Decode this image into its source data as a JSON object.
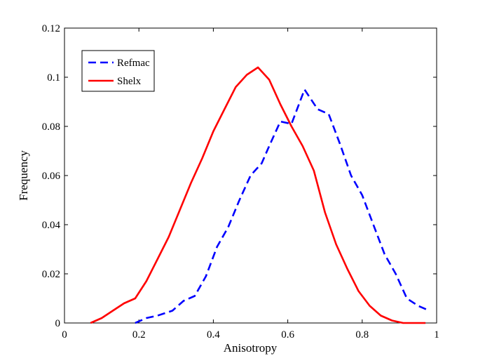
{
  "chart_data": {
    "type": "line",
    "xlabel": "Anisotropy",
    "ylabel": "Frequency",
    "xlim": [
      0,
      1
    ],
    "ylim": [
      0,
      0.12
    ],
    "x_ticks": [
      "0",
      "0.2",
      "0.4",
      "0.6",
      "0.8",
      "1"
    ],
    "y_ticks": [
      "0",
      "0.02",
      "0.04",
      "0.06",
      "0.08",
      "0.1",
      "0.12"
    ],
    "grid": false,
    "legend_position": "top-left",
    "series": [
      {
        "name": "Refmac",
        "color": "#0000ff",
        "style": "dashed",
        "x": [
          0.19,
          0.22,
          0.25,
          0.27,
          0.29,
          0.32,
          0.35,
          0.38,
          0.41,
          0.44,
          0.47,
          0.5,
          0.53,
          0.55,
          0.58,
          0.61,
          0.645,
          0.68,
          0.71,
          0.74,
          0.77,
          0.8,
          0.83,
          0.86,
          0.89,
          0.92,
          0.95,
          0.98
        ],
        "y": [
          0.0,
          0.002,
          0.003,
          0.004,
          0.005,
          0.009,
          0.011,
          0.019,
          0.031,
          0.039,
          0.05,
          0.06,
          0.065,
          0.072,
          0.082,
          0.081,
          0.095,
          0.087,
          0.085,
          0.073,
          0.06,
          0.052,
          0.04,
          0.028,
          0.02,
          0.01,
          0.007,
          0.005
        ]
      },
      {
        "name": "Shelx",
        "color": "#ff0000",
        "style": "solid",
        "x": [
          0.07,
          0.1,
          0.13,
          0.16,
          0.19,
          0.22,
          0.25,
          0.28,
          0.31,
          0.34,
          0.37,
          0.4,
          0.43,
          0.46,
          0.49,
          0.52,
          0.55,
          0.58,
          0.61,
          0.64,
          0.67,
          0.7,
          0.73,
          0.76,
          0.79,
          0.82,
          0.85,
          0.88,
          0.91,
          0.94,
          0.97
        ],
        "y": [
          0.0,
          0.002,
          0.005,
          0.008,
          0.01,
          0.017,
          0.026,
          0.035,
          0.046,
          0.057,
          0.067,
          0.078,
          0.087,
          0.096,
          0.101,
          0.104,
          0.099,
          0.089,
          0.08,
          0.072,
          0.062,
          0.045,
          0.032,
          0.022,
          0.013,
          0.007,
          0.003,
          0.001,
          0.0,
          0.0,
          0.0
        ]
      }
    ]
  }
}
